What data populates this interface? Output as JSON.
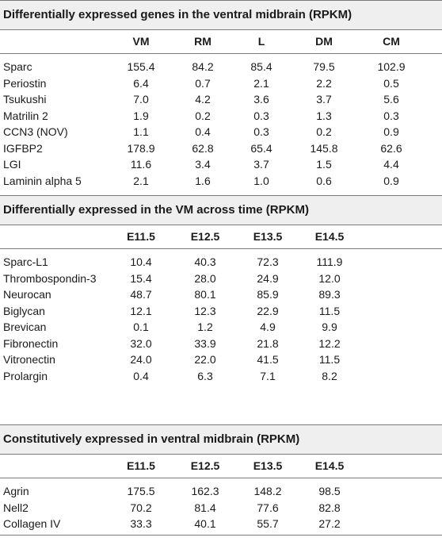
{
  "sections": [
    {
      "title": "Differentially expressed genes in the ventral midbrain (RPKM)",
      "columns": [
        "VM",
        "RM",
        "L",
        "DM",
        "CM"
      ],
      "rows": [
        {
          "name": "Sparc",
          "values": [
            "155.4",
            "84.2",
            "85.4",
            "79.5",
            "102.9"
          ]
        },
        {
          "name": "Periostin",
          "values": [
            "6.4",
            "0.7",
            "2.1",
            "2.2",
            "0.5"
          ]
        },
        {
          "name": "Tsukushi",
          "values": [
            "7.0",
            "4.2",
            "3.6",
            "3.7",
            "5.6"
          ]
        },
        {
          "name": "Matrilin 2",
          "values": [
            "1.9",
            "0.2",
            "0.3",
            "1.3",
            "0.3"
          ]
        },
        {
          "name": "CCN3 (NOV)",
          "values": [
            "1.1",
            "0.4",
            "0.3",
            "0.2",
            "0.9"
          ]
        },
        {
          "name": "IGFBP2",
          "values": [
            "178.9",
            "62.8",
            "65.4",
            "145.8",
            "62.6"
          ]
        },
        {
          "name": "LGI",
          "values": [
            "11.6",
            "3.4",
            "3.7",
            "1.5",
            "4.4"
          ]
        },
        {
          "name": "Laminin alpha 5",
          "values": [
            "2.1",
            "1.6",
            "1.0",
            "0.6",
            "0.9"
          ]
        }
      ]
    },
    {
      "title": "Differentially expressed in the VM across time (RPKM)",
      "columns": [
        "E11.5",
        "E12.5",
        "E13.5",
        "E14.5"
      ],
      "rows": [
        {
          "name": "Sparc-L1",
          "values": [
            "10.4",
            "40.3",
            "72.3",
            "111.9"
          ]
        },
        {
          "name": "Thrombospondin-3",
          "values": [
            "15.4",
            "28.0",
            "24.9",
            "12.0"
          ]
        },
        {
          "name": "Neurocan",
          "values": [
            "48.7",
            "80.1",
            "85.9",
            "89.3"
          ]
        },
        {
          "name": "Biglycan",
          "values": [
            "12.1",
            "12.3",
            "22.9",
            "11.5"
          ]
        },
        {
          "name": "Brevican",
          "values": [
            "0.1",
            "1.2",
            "4.9",
            "9.9"
          ]
        },
        {
          "name": "Fibronectin",
          "values": [
            "32.0",
            "33.9",
            "21.8",
            "12.2"
          ]
        },
        {
          "name": "Vitronectin",
          "values": [
            "24.0",
            "22.0",
            "41.5",
            "11.5"
          ]
        },
        {
          "name": "Prolargin",
          "values": [
            "0.4",
            "6.3",
            "7.1",
            "8.2"
          ]
        }
      ]
    },
    {
      "title": "Constitutively expressed in ventral midbrain (RPKM)",
      "columns": [
        "E11.5",
        "E12.5",
        "E13.5",
        "E14.5"
      ],
      "rows": [
        {
          "name": "Agrin",
          "values": [
            "175.5",
            "162.3",
            "148.2",
            "98.5"
          ]
        },
        {
          "name": "Nell2",
          "values": [
            "70.2",
            "81.4",
            "77.6",
            "82.8"
          ]
        },
        {
          "name": "Collagen IV",
          "values": [
            "33.3",
            "40.1",
            "55.7",
            "27.2"
          ]
        }
      ]
    }
  ]
}
